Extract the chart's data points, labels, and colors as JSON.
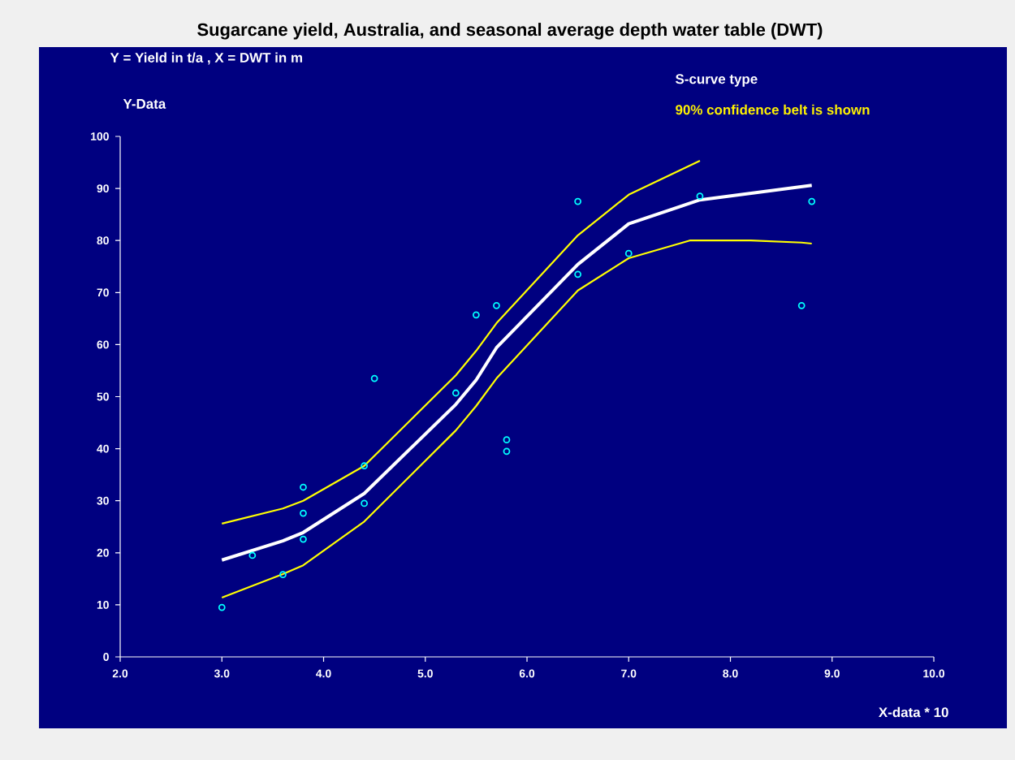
{
  "chart_data": {
    "type": "line",
    "title": "Sugarcane yield, Australia, and seasonal average depth water table (DWT)",
    "xlabel": "X-data * 10",
    "ylabel": "Y-Data",
    "annotations": [
      "Y = Yield in t/a , X = DWT in m",
      "S-curve type",
      "90% confidence belt is shown"
    ],
    "xlim": [
      2,
      10
    ],
    "ylim": [
      0,
      100
    ],
    "xticks": [
      {
        "value": 2,
        "label": "2.0"
      },
      {
        "value": 3,
        "label": "3.0"
      },
      {
        "value": 4,
        "label": "4.0"
      },
      {
        "value": 5,
        "label": "5.0"
      },
      {
        "value": 6,
        "label": "6.0"
      },
      {
        "value": 7,
        "label": "7.0"
      },
      {
        "value": 8,
        "label": "8.0"
      },
      {
        "value": 9,
        "label": "9.0"
      },
      {
        "value": 10,
        "label": "10.0"
      }
    ],
    "yticks": [
      0,
      10,
      20,
      30,
      40,
      50,
      60,
      70,
      80,
      90,
      100
    ],
    "series": [
      {
        "color": "#ffff00",
        "x": [
          3.0,
          3.6,
          3.8,
          4.4,
          5.3,
          5.5,
          5.7,
          6.5,
          7.0,
          7.7
        ],
        "values": [
          25.6,
          28.5,
          30,
          36.7,
          54.1,
          58.8,
          64.1,
          81,
          88.8,
          95.3
        ]
      },
      {
        "color": "#ffff00",
        "x": [
          3.0,
          3.6,
          3.8,
          4.4,
          5.3,
          5.5,
          5.7,
          6.5,
          7.0,
          7.6,
          8.2,
          8.7,
          8.8
        ],
        "values": [
          11.4,
          15.9,
          17.6,
          26,
          43.5,
          48.2,
          53.5,
          70.4,
          76.6,
          80,
          80,
          79.6,
          79.4
        ]
      },
      {
        "color": "#ffffff",
        "x": [
          3.0,
          3.6,
          3.8,
          4.4,
          5.3,
          5.5,
          5.7,
          6.5,
          7.0,
          7.7,
          8.8
        ],
        "values": [
          18.6,
          22.3,
          23.9,
          31.4,
          48.5,
          53.2,
          59.4,
          75.4,
          83.2,
          87.8,
          90.6
        ]
      },
      {
        "type": "scatter",
        "color": "#00ffff",
        "marker": "circle",
        "x": [
          3.0,
          3.3,
          3.6,
          3.8,
          3.8,
          3.8,
          4.4,
          4.4,
          4.5,
          5.3,
          5.5,
          5.7,
          5.8,
          5.8,
          6.5,
          6.5,
          7.0,
          7.7,
          8.7,
          8.8
        ],
        "values": [
          9.5,
          19.5,
          15.8,
          32.6,
          27.6,
          22.6,
          29.5,
          36.7,
          53.5,
          50.7,
          65.7,
          67.5,
          41.7,
          39.5,
          87.5,
          73.5,
          77.5,
          88.5,
          67.5,
          87.5
        ]
      }
    ]
  }
}
